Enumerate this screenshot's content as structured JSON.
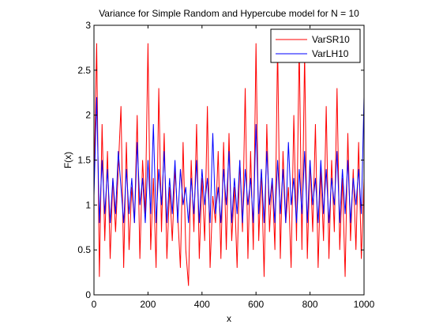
{
  "chart_data": {
    "type": "line",
    "title": "Variance for Simple Random and Hypercube model for N = 10",
    "xlabel": "x",
    "ylabel": "F(x)",
    "xlim": [
      0,
      1000
    ],
    "ylim": [
      0,
      3
    ],
    "xticks": [
      "0",
      "200",
      "400",
      "600",
      "800",
      "1000"
    ],
    "yticks": [
      "0",
      "0.5",
      "1",
      "1.5",
      "2",
      "2.5",
      "3"
    ],
    "grid": false,
    "legend_position": "top-right",
    "series": [
      {
        "name": "VarSR10",
        "color": "#ff0000",
        "x": [
          0,
          10,
          20,
          30,
          40,
          50,
          60,
          70,
          80,
          90,
          100,
          110,
          120,
          130,
          140,
          150,
          160,
          170,
          180,
          190,
          200,
          210,
          220,
          230,
          240,
          250,
          260,
          270,
          280,
          290,
          300,
          310,
          320,
          330,
          340,
          350,
          360,
          370,
          380,
          390,
          400,
          410,
          420,
          430,
          440,
          450,
          460,
          470,
          480,
          490,
          500,
          510,
          520,
          530,
          540,
          550,
          560,
          570,
          580,
          590,
          600,
          610,
          620,
          630,
          640,
          650,
          660,
          670,
          680,
          690,
          700,
          710,
          720,
          730,
          740,
          750,
          760,
          770,
          780,
          790,
          800,
          810,
          820,
          830,
          840,
          850,
          860,
          870,
          880,
          890,
          900,
          910,
          920,
          930,
          940,
          950,
          960,
          970,
          980,
          990,
          1000
        ],
        "values": [
          1.2,
          2.8,
          0.2,
          1.9,
          0.6,
          1.6,
          0.4,
          1.3,
          0.7,
          1.4,
          2.1,
          0.3,
          1.7,
          0.5,
          1.2,
          0.8,
          2.0,
          0.4,
          1.5,
          0.9,
          2.8,
          0.5,
          1.3,
          0.3,
          2.3,
          0.7,
          1.8,
          0.4,
          1.2,
          0.6,
          1.4,
          0.9,
          0.3,
          1.7,
          0.5,
          0.1,
          1.5,
          0.7,
          1.9,
          0.4,
          1.3,
          0.6,
          2.1,
          0.3,
          1.1,
          0.8,
          1.6,
          0.4,
          1.7,
          0.5,
          1.8,
          0.6,
          1.2,
          0.3,
          1.5,
          0.7,
          2.3,
          0.4,
          1.6,
          0.5,
          2.8,
          0.6,
          1.4,
          0.2,
          1.9,
          0.7,
          1.3,
          0.5,
          2.8,
          0.4,
          1.6,
          0.8,
          1.2,
          0.3,
          2.0,
          0.6,
          2.8,
          0.5,
          2.7,
          0.4,
          1.5,
          0.7,
          1.9,
          0.3,
          1.4,
          0.6,
          2.1,
          0.4,
          1.5,
          0.7,
          2.3,
          0.5,
          1.3,
          0.2,
          1.8,
          0.6,
          1.4,
          0.5,
          1.7,
          0.4,
          1.3
        ]
      },
      {
        "name": "VarLH10",
        "color": "#0000ff",
        "x": [
          0,
          10,
          20,
          30,
          40,
          50,
          60,
          70,
          80,
          90,
          100,
          110,
          120,
          130,
          140,
          150,
          160,
          170,
          180,
          190,
          200,
          210,
          220,
          230,
          240,
          250,
          260,
          270,
          280,
          290,
          300,
          310,
          320,
          330,
          340,
          350,
          360,
          370,
          380,
          390,
          400,
          410,
          420,
          430,
          440,
          450,
          460,
          470,
          480,
          490,
          500,
          510,
          520,
          530,
          540,
          550,
          560,
          570,
          580,
          590,
          600,
          610,
          620,
          630,
          640,
          650,
          660,
          670,
          680,
          690,
          700,
          710,
          720,
          730,
          740,
          750,
          760,
          770,
          780,
          790,
          800,
          810,
          820,
          830,
          840,
          850,
          860,
          870,
          880,
          890,
          900,
          910,
          920,
          930,
          940,
          950,
          960,
          970,
          980,
          990,
          1000
        ],
        "values": [
          1.1,
          2.2,
          0.8,
          1.5,
          0.9,
          1.4,
          0.8,
          1.3,
          0.9,
          1.6,
          1.2,
          0.8,
          1.4,
          0.9,
          1.3,
          0.8,
          1.7,
          1.0,
          1.3,
          0.8,
          1.5,
          0.9,
          1.9,
          0.8,
          1.4,
          1.0,
          1.6,
          0.8,
          1.3,
          0.9,
          1.5,
          0.8,
          1.4,
          1.0,
          1.2,
          0.8,
          1.3,
          0.9,
          1.5,
          0.8,
          1.4,
          1.0,
          1.3,
          0.8,
          1.8,
          0.9,
          1.2,
          0.8,
          1.4,
          1.0,
          1.6,
          0.8,
          1.3,
          0.9,
          1.5,
          0.8,
          1.4,
          1.0,
          1.3,
          0.8,
          1.9,
          0.9,
          1.4,
          0.8,
          1.6,
          1.0,
          1.3,
          0.8,
          1.5,
          0.9,
          1.4,
          0.8,
          1.7,
          1.0,
          1.3,
          0.8,
          1.4,
          0.9,
          1.6,
          0.8,
          1.5,
          1.0,
          1.3,
          0.8,
          1.5,
          0.9,
          1.4,
          0.8,
          1.3,
          1.0,
          1.6,
          0.8,
          1.4,
          0.9,
          1.5,
          0.8,
          1.3,
          1.0,
          1.4,
          0.9,
          2.2
        ]
      }
    ]
  }
}
